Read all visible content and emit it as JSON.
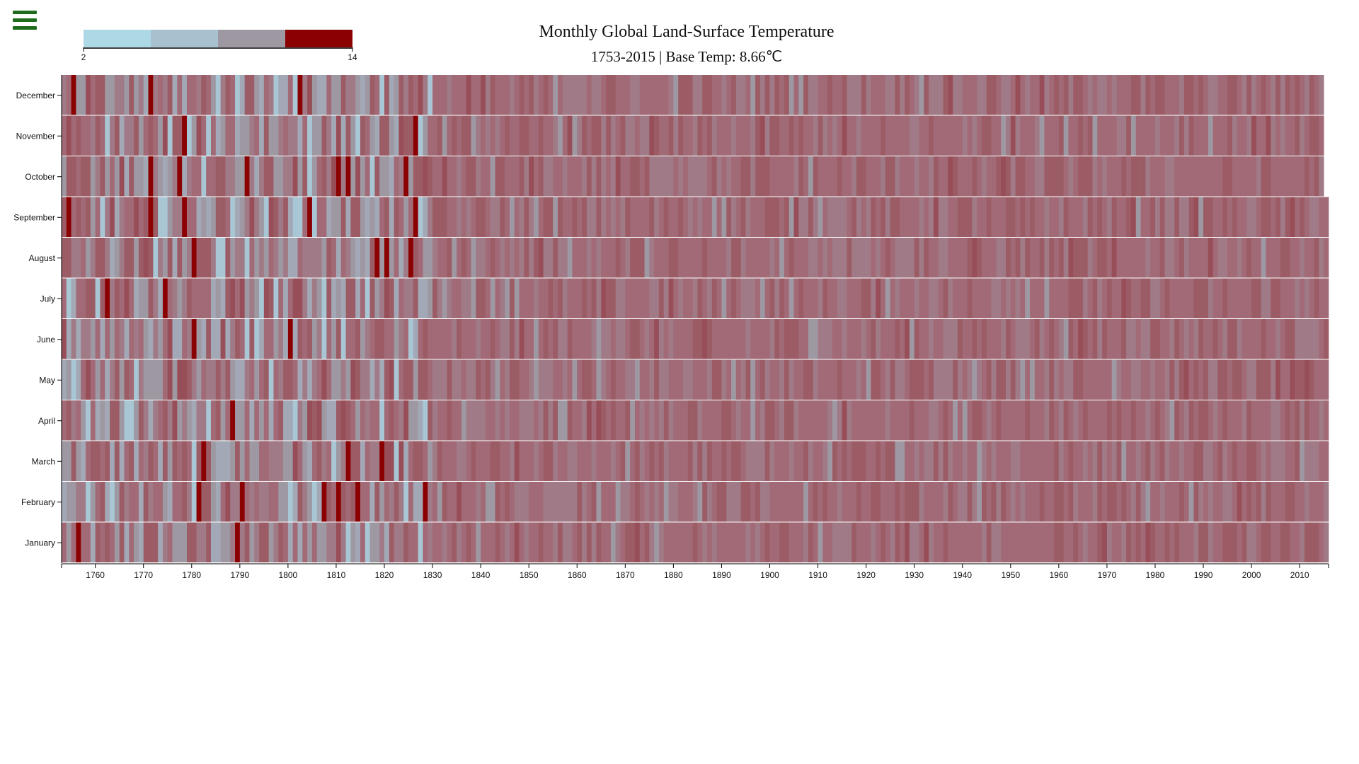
{
  "menu": {
    "icon": "hamburger-menu-icon",
    "color": "#1e6b1e"
  },
  "chart_data": {
    "type": "heatmap",
    "title": "Monthly Global Land-Surface Temperature",
    "subtitle": "1753-2015 | Base Temp: 8.66℃",
    "base_temp": 8.66,
    "x_range": [
      1753,
      2015
    ],
    "x_ticks": [
      1760,
      1770,
      1780,
      1790,
      1800,
      1810,
      1820,
      1830,
      1840,
      1850,
      1860,
      1870,
      1880,
      1890,
      1900,
      1910,
      1920,
      1930,
      1940,
      1950,
      1960,
      1970,
      1980,
      1990,
      2000,
      2010
    ],
    "months": [
      "January",
      "February",
      "March",
      "April",
      "May",
      "June",
      "July",
      "August",
      "September",
      "October",
      "November",
      "December"
    ],
    "last_month_2015": 9,
    "legend": {
      "min_label": "2",
      "max_label": "14",
      "colors": [
        "#add8e6",
        "#a7c2ce",
        "#9e98a2",
        "#8b0000"
      ]
    },
    "cell_colors": [
      "#a8c6d4",
      "#a3a8b6",
      "#9e98a2",
      "#a07a86",
      "#a16a76",
      "#9c5c66",
      "#984e58",
      "#8b0000"
    ]
  }
}
